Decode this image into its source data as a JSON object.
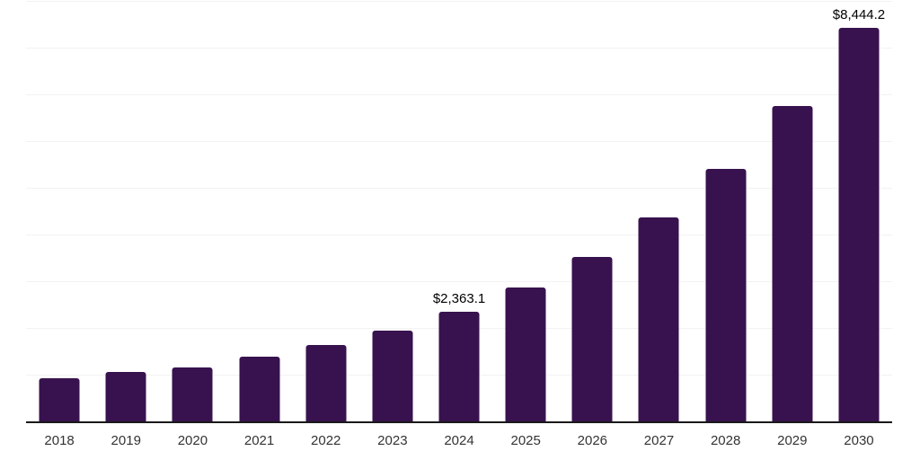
{
  "chart_data": {
    "type": "bar",
    "title": "",
    "xlabel": "",
    "ylabel": "",
    "categories": [
      "2018",
      "2019",
      "2020",
      "2021",
      "2022",
      "2023",
      "2024",
      "2025",
      "2026",
      "2027",
      "2028",
      "2029",
      "2030"
    ],
    "values": [
      950,
      1070,
      1180,
      1410,
      1660,
      1960,
      2363.1,
      2890,
      3540,
      4390,
      5430,
      6760,
      8444.2
    ],
    "data_labels": [
      "",
      "",
      "",
      "",
      "",
      "",
      "$2,363.1",
      "",
      "",
      "",
      "",
      "",
      "$8,444.2"
    ],
    "ylim": [
      0,
      9000
    ],
    "gridline_step": 1000,
    "grid": "horizontal-only",
    "legend_position": "none",
    "colors": {
      "bar": "#38124E",
      "axis_line": "#1a1a1a",
      "gridline": "#f2f2f3",
      "tick_label": "#333333",
      "data_label": "#000000",
      "background": "#ffffff"
    }
  }
}
